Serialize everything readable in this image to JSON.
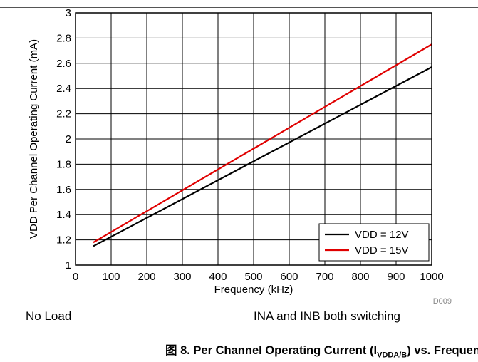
{
  "chart_data": {
    "type": "line",
    "title": "",
    "xlabel": "Frequency (kHz)",
    "ylabel": "VDD Per Channel Operating Current (mA)",
    "xlim": [
      0,
      1000
    ],
    "ylim": [
      1,
      3
    ],
    "x_ticks": [
      "0",
      "100",
      "200",
      "300",
      "400",
      "500",
      "600",
      "700",
      "800",
      "900",
      "1000"
    ],
    "y_ticks": [
      "1",
      "1.2",
      "1.4",
      "1.6",
      "1.8",
      "2",
      "2.2",
      "2.4",
      "2.6",
      "2.8",
      "3"
    ],
    "grid": true,
    "legend_position": "bottom-right",
    "series": [
      {
        "name": "VDD = 12V",
        "color": "#000000",
        "x": [
          50,
          1000
        ],
        "y": [
          1.15,
          2.57
        ]
      },
      {
        "name": "VDD = 15V",
        "color": "#e00000",
        "x": [
          50,
          1000
        ],
        "y": [
          1.18,
          2.75
        ]
      }
    ],
    "figure_id": "D009"
  },
  "notes": {
    "left": "No Load",
    "right": "INA and INB both switching"
  },
  "caption": {
    "prefix": "图 8. Per Channel Operating Current (I",
    "subscript": "VDDA/B",
    "suffix": ") vs. Frequency"
  }
}
